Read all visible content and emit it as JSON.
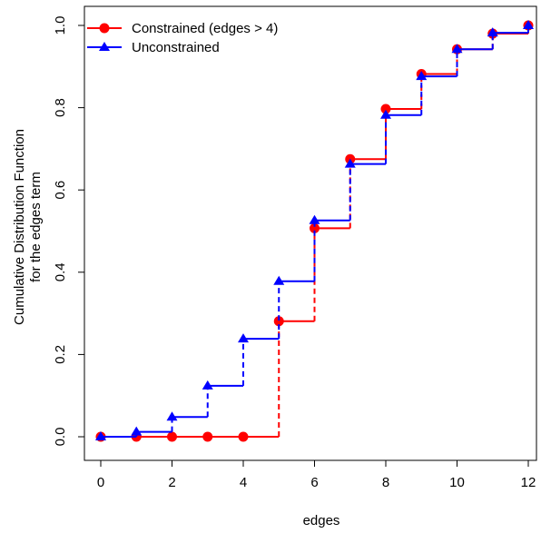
{
  "chart_data": {
    "type": "line",
    "xlabel": "edges",
    "ylabel_lines": [
      "Cumulative Distribution Function",
      "for the edges term"
    ],
    "xlim": [
      0,
      12
    ],
    "ylim": [
      0,
      1
    ],
    "x_ticks": [
      0,
      2,
      4,
      6,
      8,
      10,
      12
    ],
    "x_tick_labels": [
      "0",
      "2",
      "4",
      "6",
      "8",
      "10",
      "12"
    ],
    "y_ticks": [
      0,
      0.2,
      0.4,
      0.6,
      0.8,
      1.0
    ],
    "y_tick_labels": [
      "0.0",
      "0.2",
      "0.4",
      "0.6",
      "0.8",
      "1.0"
    ],
    "grid": false,
    "legend_position": "top-left",
    "step_style": "step with dashed vertical risers",
    "x": [
      0,
      1,
      2,
      3,
      4,
      5,
      6,
      7,
      8,
      9,
      10,
      11,
      12
    ],
    "series": [
      {
        "name": "Constrained (edges > 4)",
        "color": "#ff0000",
        "marker": "circle",
        "values": [
          0.0,
          0.0,
          0.0,
          0.0,
          0.0,
          0.281,
          0.507,
          0.675,
          0.797,
          0.882,
          0.942,
          0.98,
          1.0
        ]
      },
      {
        "name": "Unconstrained",
        "color": "#0000ff",
        "marker": "triangle",
        "values": [
          0.0,
          0.012,
          0.048,
          0.124,
          0.238,
          0.378,
          0.526,
          0.663,
          0.782,
          0.876,
          0.942,
          0.982,
          1.0
        ]
      }
    ]
  }
}
